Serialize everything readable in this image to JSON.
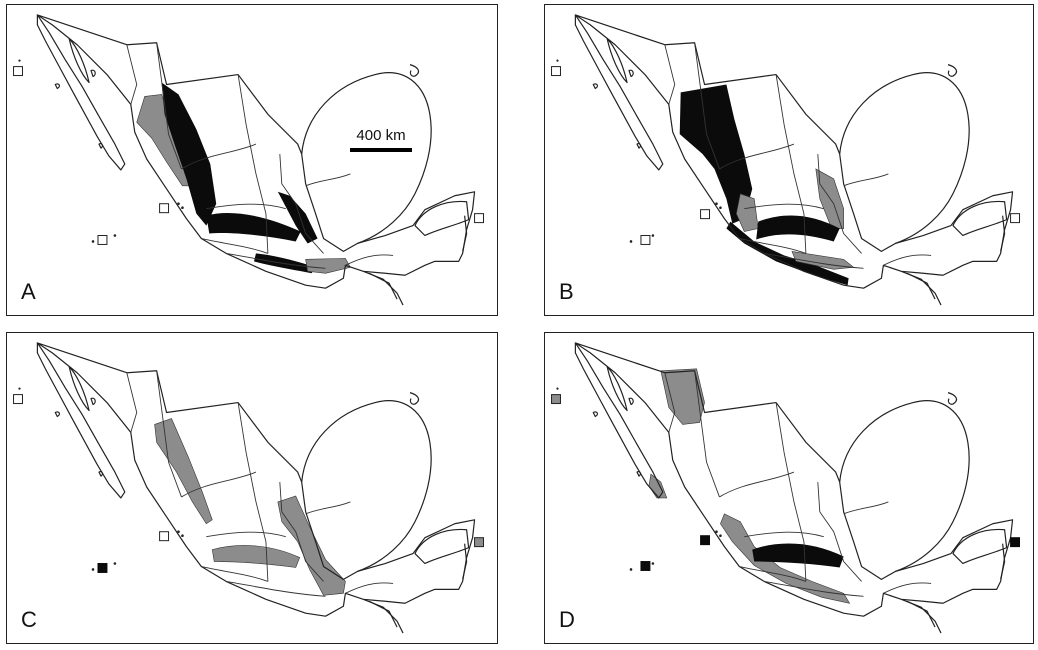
{
  "panels": [
    {
      "id": "A",
      "label": "A",
      "scale_bar": "400 km"
    },
    {
      "id": "B",
      "label": "B"
    },
    {
      "id": "C",
      "label": "C"
    },
    {
      "id": "D",
      "label": "D"
    }
  ],
  "colors": {
    "present": "#0b0b0b",
    "partial": "#8c8c8c",
    "absent": "#ffffff",
    "outline": "#222222"
  }
}
